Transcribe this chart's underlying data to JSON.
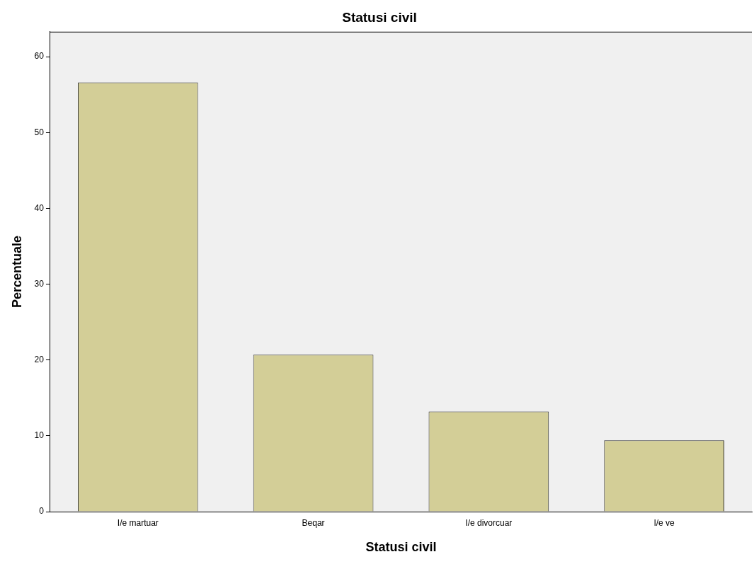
{
  "chart_data": {
    "type": "bar",
    "title": "Statusi civil",
    "xlabel": "Statusi civil",
    "ylabel": "Percentuale",
    "categories": [
      "I/e martuar",
      "Beqar",
      "I/e divorcuar",
      "I/e ve"
    ],
    "values": [
      56.6,
      20.7,
      13.2,
      9.4
    ],
    "color": "#d3ce97",
    "ylim": [
      0,
      63.3
    ],
    "yticks": [
      0,
      10,
      20,
      30,
      40,
      50,
      60
    ],
    "grid": false,
    "legend": false
  }
}
